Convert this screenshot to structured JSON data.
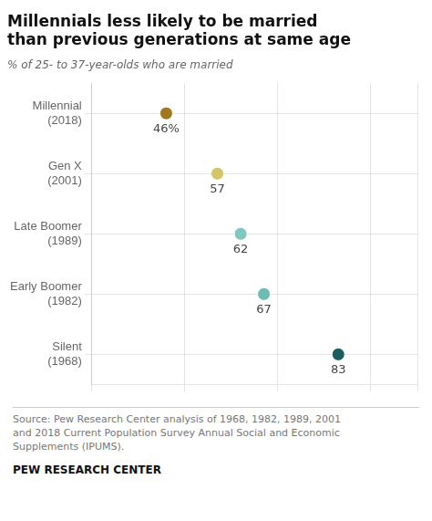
{
  "chart_data": {
    "type": "dot",
    "orientation": "horizontal",
    "title": [
      "Millennials less likely to be married",
      "than previous generations at same age"
    ],
    "subtitle": "% of 25- to 37-year-olds who are married",
    "categories": [
      [
        "Millennial",
        "(2018)"
      ],
      [
        "Gen X",
        "(2001)"
      ],
      [
        "Late Boomer",
        "(1989)"
      ],
      [
        "Early Boomer",
        "(1982)"
      ],
      [
        "Silent",
        "(1968)"
      ]
    ],
    "values": [
      46,
      57,
      62,
      67,
      83
    ],
    "value_labels": [
      "46%",
      "57",
      "62",
      "67",
      "83"
    ],
    "data_labels": true,
    "colors": [
      "#a07820",
      "#d4c46a",
      "#7fc8be",
      "#6dbdb4",
      "#1b5e5e"
    ],
    "xlim": [
      30,
      100
    ],
    "xticks": [
      30,
      50,
      70,
      90,
      100
    ],
    "tick_labels": "y",
    "grid": true,
    "source": "Source: Pew Research Center analysis of 1968, 1982, 1989, 2001\nand 2018 Current Population Survey Annual Social and Economic\nSupplements (IPUMS).",
    "footer": "PEW RESEARCH CENTER"
  }
}
